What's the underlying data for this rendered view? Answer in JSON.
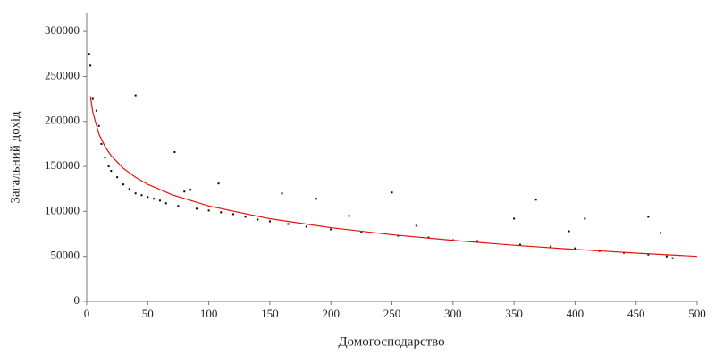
{
  "chart_data": {
    "type": "scatter",
    "xlabel": "Домогосподарство",
    "ylabel": "Загальний дохід",
    "x": [
      2,
      3,
      5,
      8,
      10,
      12,
      15,
      18,
      20,
      25,
      30,
      35,
      40,
      40,
      45,
      50,
      55,
      60,
      65,
      72,
      75,
      80,
      85,
      90,
      100,
      108,
      110,
      120,
      130,
      140,
      150,
      160,
      165,
      180,
      188,
      200,
      215,
      225,
      250,
      255,
      270,
      280,
      300,
      320,
      350,
      355,
      368,
      380,
      395,
      400,
      408,
      420,
      440,
      460,
      460,
      470,
      475,
      480
    ],
    "values": [
      275000,
      262000,
      225000,
      212000,
      195000,
      175000,
      160000,
      150000,
      145000,
      138000,
      130000,
      125000,
      120000,
      229000,
      118000,
      116000,
      114000,
      112000,
      109000,
      166000,
      106000,
      122000,
      124000,
      103000,
      101000,
      131000,
      99000,
      97000,
      94000,
      91000,
      89000,
      120000,
      86000,
      83000,
      114000,
      80000,
      95000,
      77000,
      121000,
      73000,
      84000,
      71000,
      68000,
      67000,
      92000,
      63000,
      113000,
      61000,
      78000,
      59000,
      92000,
      56000,
      54000,
      94000,
      52000,
      76000,
      50000,
      48000
    ],
    "color": "#000000",
    "fit": {
      "x": [
        3,
        5,
        10,
        15,
        20,
        30,
        40,
        50,
        70,
        100,
        150,
        200,
        250,
        300,
        350,
        400,
        450,
        500
      ],
      "values": [
        228000,
        210300,
        186100,
        172000,
        162000,
        147900,
        137900,
        130100,
        118400,
        106000,
        91900,
        81900,
        74100,
        67800,
        62400,
        57800,
        53700,
        50000
      ],
      "color": "#e8100e"
    },
    "xlim": [
      0,
      500
    ],
    "ylim": [
      0,
      320000
    ],
    "xticks": [
      0,
      50,
      100,
      150,
      200,
      250,
      300,
      350,
      400,
      450,
      500
    ],
    "yticks": [
      0,
      50000,
      100000,
      150000,
      200000,
      250000,
      300000
    ]
  }
}
